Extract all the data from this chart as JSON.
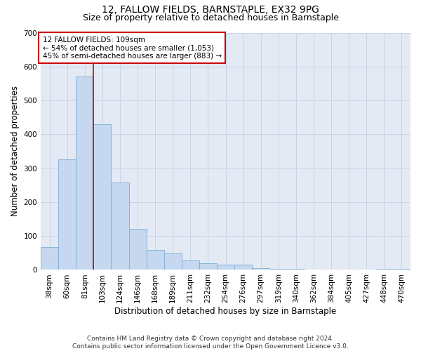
{
  "title1": "12, FALLOW FIELDS, BARNSTAPLE, EX32 9PG",
  "title2": "Size of property relative to detached houses in Barnstaple",
  "xlabel": "Distribution of detached houses by size in Barnstaple",
  "ylabel": "Number of detached properties",
  "categories": [
    "38sqm",
    "60sqm",
    "81sqm",
    "103sqm",
    "124sqm",
    "146sqm",
    "168sqm",
    "189sqm",
    "211sqm",
    "232sqm",
    "254sqm",
    "276sqm",
    "297sqm",
    "319sqm",
    "340sqm",
    "362sqm",
    "384sqm",
    "405sqm",
    "427sqm",
    "448sqm",
    "470sqm"
  ],
  "values": [
    68,
    327,
    570,
    430,
    257,
    122,
    58,
    48,
    27,
    20,
    15,
    15,
    5,
    3,
    3,
    0,
    0,
    0,
    0,
    3,
    3
  ],
  "bar_color": "#c5d8f0",
  "bar_edge_color": "#7badd4",
  "vline_x": 2.5,
  "annotation_text": "12 FALLOW FIELDS: 109sqm\n← 54% of detached houses are smaller (1,053)\n45% of semi-detached houses are larger (883) →",
  "annotation_box_color": "#ffffff",
  "annotation_box_edge": "#cc0000",
  "vline_color": "#cc0000",
  "ylim": [
    0,
    700
  ],
  "yticks": [
    0,
    100,
    200,
    300,
    400,
    500,
    600,
    700
  ],
  "grid_color": "#c8d4e8",
  "bg_color": "#e4eaf4",
  "footer": "Contains HM Land Registry data © Crown copyright and database right 2024.\nContains public sector information licensed under the Open Government Licence v3.0.",
  "title1_fontsize": 10,
  "title2_fontsize": 9,
  "xlabel_fontsize": 8.5,
  "ylabel_fontsize": 8.5,
  "tick_fontsize": 7.5,
  "annot_fontsize": 7.5,
  "footer_fontsize": 6.5
}
